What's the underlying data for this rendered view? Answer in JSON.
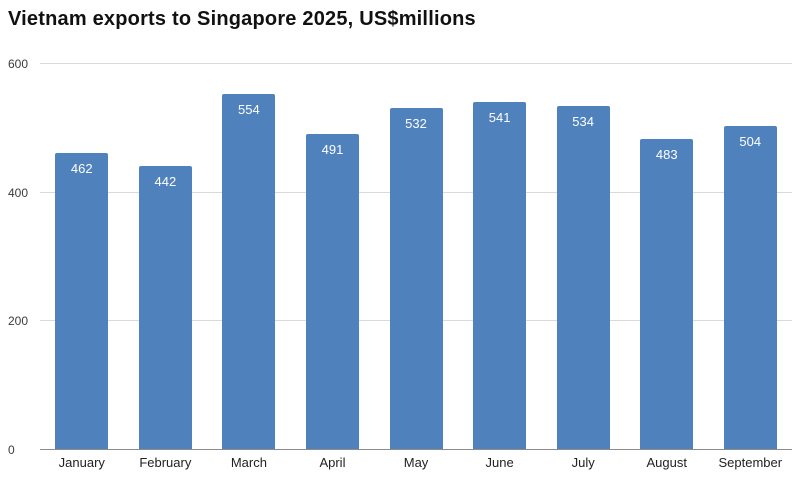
{
  "chart_data": {
    "type": "bar",
    "title": "Vietnam exports to Singapore 2025, US$millions",
    "categories": [
      "January",
      "February",
      "March",
      "April",
      "May",
      "June",
      "July",
      "August",
      "September"
    ],
    "values": [
      462,
      442,
      554,
      491,
      532,
      541,
      534,
      483,
      504
    ],
    "xlabel": "",
    "ylabel": "",
    "ylim": [
      0,
      600
    ],
    "yticks": [
      0,
      200,
      400,
      600
    ],
    "grid": "horizontal",
    "legend": "none",
    "bar_color": "#4f81bd",
    "value_label_color": "#ffffff"
  }
}
